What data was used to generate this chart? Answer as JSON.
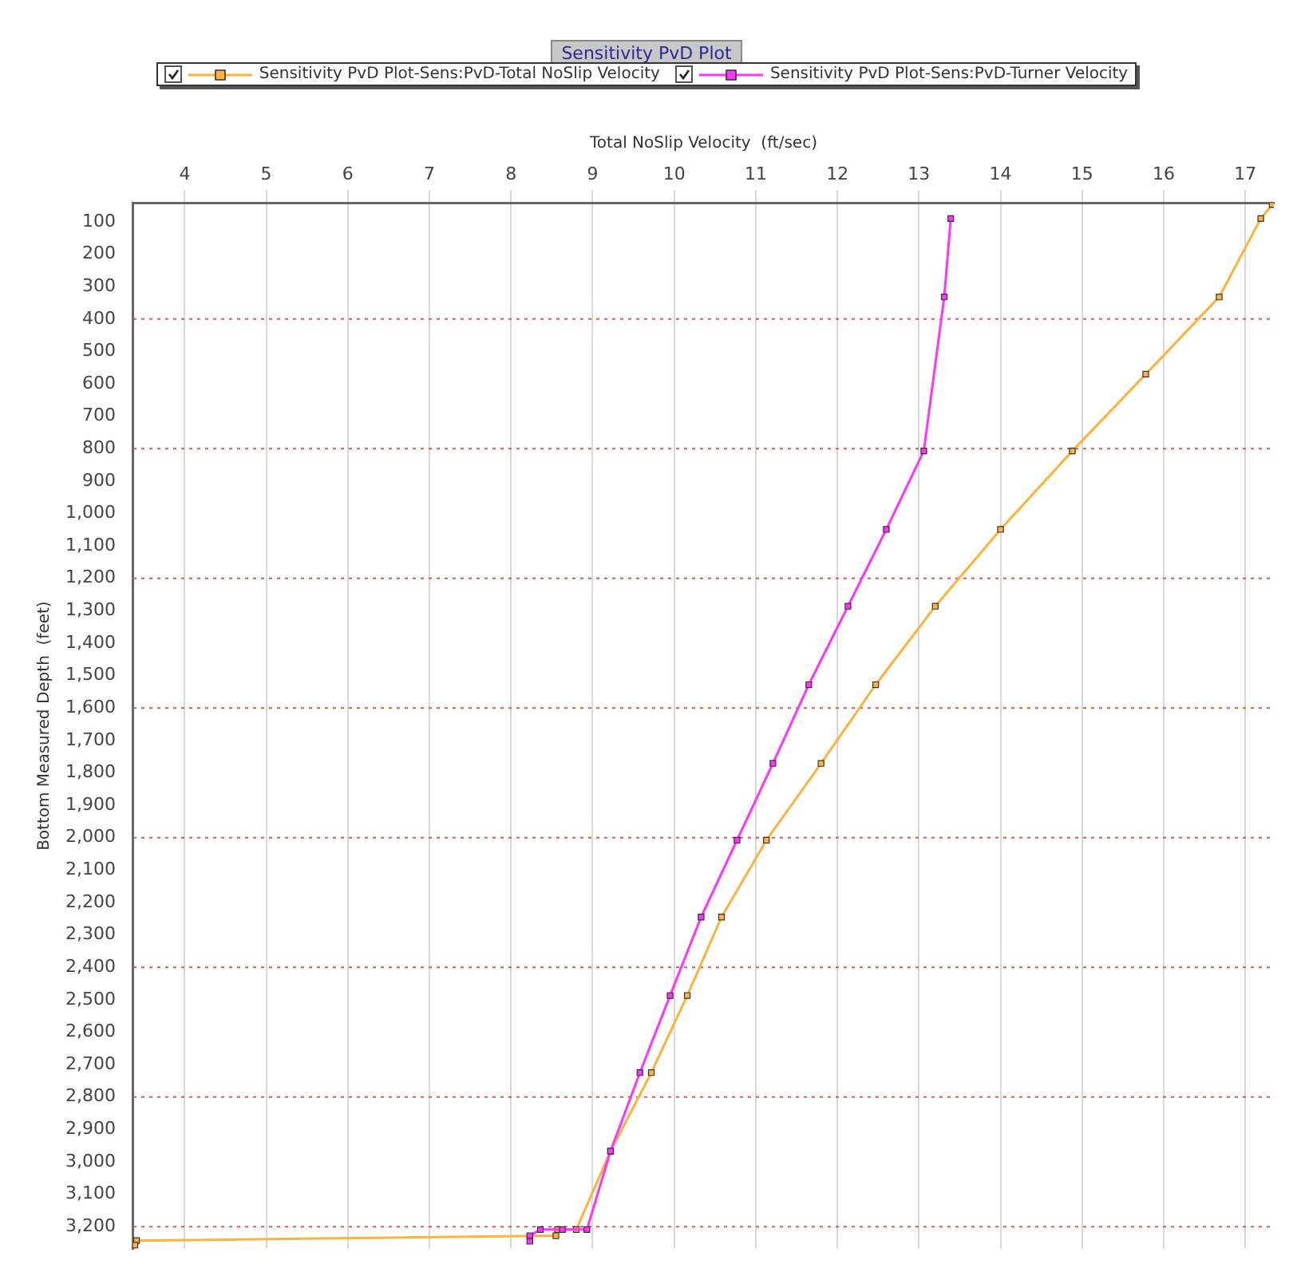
{
  "chart_data": {
    "type": "line",
    "title": "Sensitivity PvD Plot",
    "xlabel": "Total NoSlip Velocity  (ft/sec)",
    "ylabel": "Bottom Measured Depth  (feet)",
    "xlim": [
      3.37,
      17.35
    ],
    "xticks": [
      4,
      5,
      6,
      7,
      8,
      9,
      10,
      11,
      12,
      13,
      14,
      15,
      16,
      17
    ],
    "ylim": [
      3268,
      42
    ],
    "yticks": [
      {
        "value": 100,
        "label": "100"
      },
      {
        "value": 200,
        "label": "200"
      },
      {
        "value": 300,
        "label": "300"
      },
      {
        "value": 400,
        "label": "400"
      },
      {
        "value": 500,
        "label": "500"
      },
      {
        "value": 600,
        "label": "600"
      },
      {
        "value": 700,
        "label": "700"
      },
      {
        "value": 800,
        "label": "800"
      },
      {
        "value": 900,
        "label": "900"
      },
      {
        "value": 1000,
        "label": "1,000"
      },
      {
        "value": 1100,
        "label": "1,100"
      },
      {
        "value": 1200,
        "label": "1,200"
      },
      {
        "value": 1300,
        "label": "1,300"
      },
      {
        "value": 1400,
        "label": "1,400"
      },
      {
        "value": 1500,
        "label": "1,500"
      },
      {
        "value": 1600,
        "label": "1,600"
      },
      {
        "value": 1700,
        "label": "1,700"
      },
      {
        "value": 1800,
        "label": "1,800"
      },
      {
        "value": 1900,
        "label": "1,900"
      },
      {
        "value": 2000,
        "label": "2,000"
      },
      {
        "value": 2100,
        "label": "2,100"
      },
      {
        "value": 2200,
        "label": "2,200"
      },
      {
        "value": 2300,
        "label": "2,300"
      },
      {
        "value": 2400,
        "label": "2,400"
      },
      {
        "value": 2500,
        "label": "2,500"
      },
      {
        "value": 2600,
        "label": "2,600"
      },
      {
        "value": 2700,
        "label": "2,700"
      },
      {
        "value": 2800,
        "label": "2,800"
      },
      {
        "value": 2900,
        "label": "2,900"
      },
      {
        "value": 3000,
        "label": "3,000"
      },
      {
        "value": 3100,
        "label": "3,100"
      },
      {
        "value": 3200,
        "label": "3,200"
      }
    ],
    "grid": "x",
    "legend": "top",
    "marker": "square",
    "line_style": "solid",
    "ref_lines": [
      {
        "axis": "y",
        "value": 400,
        "color": "#e05555",
        "line_style": "dotted"
      },
      {
        "axis": "y",
        "value": 800,
        "color": "#e05555",
        "line_style": "dotted"
      },
      {
        "axis": "y",
        "value": 1200,
        "color": "#e05555",
        "line_style": "dotted"
      },
      {
        "axis": "y",
        "value": 1600,
        "color": "#e05555",
        "line_style": "dotted"
      },
      {
        "axis": "y",
        "value": 2000,
        "color": "#e05555",
        "line_style": "dotted"
      },
      {
        "axis": "y",
        "value": 2400,
        "color": "#e05555",
        "line_style": "dotted"
      },
      {
        "axis": "y",
        "value": 2800,
        "color": "#e05555",
        "line_style": "dotted"
      },
      {
        "axis": "y",
        "value": 3200,
        "color": "#e05555",
        "line_style": "dotted"
      }
    ],
    "series": [
      {
        "name": "Sensitivity PvD Plot-Sens:PvD-Total NoSlip Velocity",
        "color": "#ffb13b",
        "x": [
          17.33,
          17.19,
          16.68,
          15.78,
          14.88,
          14.0,
          13.2,
          12.47,
          11.8,
          11.13,
          10.58,
          10.16,
          9.72,
          9.22,
          8.8,
          8.57,
          8.55,
          3.41,
          3.39
        ],
        "values": [
          47,
          90,
          332,
          570,
          807,
          1049,
          1286,
          1528,
          1771,
          2008,
          2245,
          2487,
          2725,
          2967,
          3209,
          3209,
          3228,
          3243,
          3257
        ]
      },
      {
        "name": "Sensitivity PvD Plot-Sens:PvD-Turner Velocity",
        "color": "#ff33ff",
        "x": [
          13.39,
          13.31,
          13.06,
          12.6,
          12.13,
          11.65,
          11.21,
          10.77,
          10.33,
          9.95,
          9.58,
          9.22,
          8.93,
          8.63,
          8.36,
          8.23,
          8.23
        ],
        "values": [
          90,
          332,
          807,
          1049,
          1286,
          1528,
          1771,
          2008,
          2245,
          2487,
          2725,
          2967,
          3209,
          3209,
          3209,
          3228,
          3245
        ]
      }
    ]
  }
}
